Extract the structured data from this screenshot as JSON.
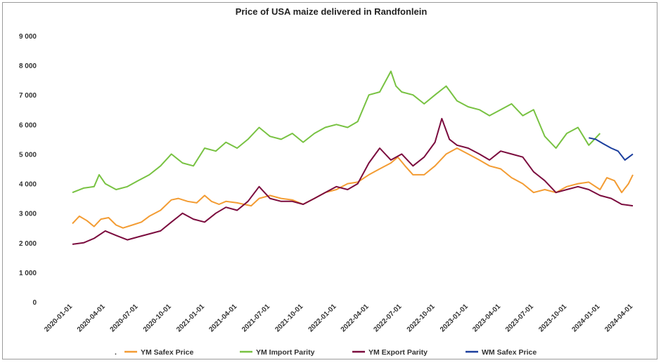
{
  "chart_data": {
    "type": "line",
    "title": "Price of USA maize delivered in Randfonlein",
    "xlabel": "",
    "ylabel": "",
    "ylim": [
      0,
      9000
    ],
    "yticks": [
      0,
      1000,
      2000,
      3000,
      4000,
      5000,
      6000,
      7000,
      8000,
      9000
    ],
    "ytick_labels": [
      "0",
      "1 000",
      "2 000",
      "3 000",
      "4 000",
      "5 000",
      "6 000",
      "7 000",
      "8 000",
      "9 000"
    ],
    "xlim": [
      "2020-01-01",
      "2024-04-01"
    ],
    "xtick_labels": [
      "2020-01-01",
      "2020-04-01",
      "2020-07-01",
      "2020-10-01",
      "2021-01-01",
      "2021-04-01",
      "2021-07-01",
      "2021-10-01",
      "2022-01-01",
      "2022-04-01",
      "2022-07-01",
      "2022-10-01",
      "2023-01-01",
      "2023-04-01",
      "2023-07-01",
      "2023-10-01",
      "2024-01-01",
      "2024-04-01"
    ],
    "grid": false,
    "legend": "bottom",
    "legend_marker": ".",
    "series": [
      {
        "name": "YM Safex Price",
        "color": "#f39c33",
        "x": [
          "2020-01-01",
          "2020-01-20",
          "2020-02-10",
          "2020-03-01",
          "2020-03-20",
          "2020-04-10",
          "2020-05-01",
          "2020-05-20",
          "2020-06-15",
          "2020-07-10",
          "2020-08-01",
          "2020-09-01",
          "2020-10-01",
          "2020-10-20",
          "2020-11-15",
          "2020-12-10",
          "2021-01-01",
          "2021-01-20",
          "2021-02-10",
          "2021-03-01",
          "2021-04-01",
          "2021-04-20",
          "2021-05-10",
          "2021-06-01",
          "2021-07-01",
          "2021-08-01",
          "2021-09-01",
          "2021-10-01",
          "2021-11-01",
          "2021-12-01",
          "2022-01-01",
          "2022-02-01",
          "2022-03-01",
          "2022-04-01",
          "2022-05-01",
          "2022-06-01",
          "2022-06-20",
          "2022-07-10",
          "2022-08-01",
          "2022-09-01",
          "2022-10-01",
          "2022-11-01",
          "2022-12-01",
          "2023-01-01",
          "2023-02-01",
          "2023-03-01",
          "2023-04-01",
          "2023-05-01",
          "2023-06-01",
          "2023-07-01",
          "2023-08-01",
          "2023-09-01",
          "2023-10-01",
          "2023-11-01",
          "2023-12-01",
          "2024-01-01",
          "2024-01-20",
          "2024-02-10",
          "2024-03-01",
          "2024-03-20",
          "2024-04-01"
        ],
        "y": [
          2650,
          2900,
          2750,
          2550,
          2800,
          2850,
          2600,
          2500,
          2600,
          2700,
          2900,
          3100,
          3450,
          3500,
          3400,
          3350,
          3600,
          3400,
          3300,
          3400,
          3350,
          3300,
          3250,
          3500,
          3600,
          3500,
          3450,
          3300,
          3500,
          3700,
          3800,
          4000,
          4050,
          4300,
          4500,
          4700,
          4900,
          4600,
          4300,
          4300,
          4600,
          5000,
          5200,
          5000,
          4800,
          4600,
          4500,
          4200,
          4000,
          3700,
          3800,
          3700,
          3900,
          4000,
          4050,
          3800,
          4200,
          4100,
          3700,
          4000,
          4300
        ]
      },
      {
        "name": "YM Import Parity",
        "color": "#78c242",
        "x": [
          "2020-01-01",
          "2020-02-01",
          "2020-03-01",
          "2020-03-15",
          "2020-04-01",
          "2020-05-01",
          "2020-06-01",
          "2020-07-01",
          "2020-08-01",
          "2020-09-01",
          "2020-10-01",
          "2020-11-01",
          "2020-12-01",
          "2021-01-01",
          "2021-02-01",
          "2021-03-01",
          "2021-04-01",
          "2021-05-01",
          "2021-06-01",
          "2021-07-01",
          "2021-08-01",
          "2021-09-01",
          "2021-10-01",
          "2021-11-01",
          "2021-12-01",
          "2022-01-01",
          "2022-02-01",
          "2022-03-01",
          "2022-04-01",
          "2022-05-01",
          "2022-06-01",
          "2022-06-15",
          "2022-07-01",
          "2022-08-01",
          "2022-09-01",
          "2022-10-01",
          "2022-11-01",
          "2022-12-01",
          "2023-01-01",
          "2023-02-01",
          "2023-03-01",
          "2023-04-01",
          "2023-05-01",
          "2023-06-01",
          "2023-07-01",
          "2023-08-01",
          "2023-09-01",
          "2023-10-01",
          "2023-11-01",
          "2023-12-01",
          "2024-01-01"
        ],
        "y": [
          3700,
          3850,
          3900,
          4300,
          4000,
          3800,
          3900,
          4100,
          4300,
          4600,
          5000,
          4700,
          4600,
          5200,
          5100,
          5400,
          5200,
          5500,
          5900,
          5600,
          5500,
          5700,
          5400,
          5700,
          5900,
          6000,
          5900,
          6100,
          7000,
          7100,
          7800,
          7300,
          7100,
          7000,
          6700,
          7000,
          7300,
          6800,
          6600,
          6500,
          6300,
          6500,
          6700,
          6300,
          6500,
          5600,
          5200,
          5700,
          5900,
          5300,
          5700
        ]
      },
      {
        "name": "YM Export Parity",
        "color": "#7b0c3e",
        "x": [
          "2020-01-01",
          "2020-02-01",
          "2020-03-01",
          "2020-04-01",
          "2020-05-01",
          "2020-06-01",
          "2020-07-01",
          "2020-08-01",
          "2020-09-01",
          "2020-10-01",
          "2020-11-01",
          "2020-12-01",
          "2021-01-01",
          "2021-02-01",
          "2021-03-01",
          "2021-04-01",
          "2021-05-01",
          "2021-06-01",
          "2021-07-01",
          "2021-08-01",
          "2021-09-01",
          "2021-10-01",
          "2021-11-01",
          "2021-12-01",
          "2022-01-01",
          "2022-02-01",
          "2022-03-01",
          "2022-04-01",
          "2022-05-01",
          "2022-06-01",
          "2022-07-01",
          "2022-08-01",
          "2022-09-01",
          "2022-10-01",
          "2022-10-20",
          "2022-11-10",
          "2022-12-01",
          "2023-01-01",
          "2023-02-01",
          "2023-03-01",
          "2023-04-01",
          "2023-05-01",
          "2023-06-01",
          "2023-07-01",
          "2023-08-01",
          "2023-09-01",
          "2023-10-01",
          "2023-11-01",
          "2023-12-01",
          "2024-01-01",
          "2024-02-01",
          "2024-03-01",
          "2024-04-01"
        ],
        "y": [
          1950,
          2000,
          2150,
          2400,
          2250,
          2100,
          2200,
          2300,
          2400,
          2700,
          3000,
          2800,
          2700,
          3000,
          3200,
          3100,
          3400,
          3900,
          3500,
          3400,
          3400,
          3300,
          3500,
          3700,
          3900,
          3800,
          4000,
          4700,
          5200,
          4800,
          5000,
          4600,
          4900,
          5400,
          6200,
          5500,
          5300,
          5200,
          5000,
          4800,
          5100,
          5000,
          4900,
          4400,
          4100,
          3700,
          3800,
          3900,
          3800,
          3600,
          3500,
          3300,
          3250
        ]
      },
      {
        "name": "WM Safex Price",
        "color": "#1c3f9e",
        "x": [
          "2023-12-01",
          "2023-12-20",
          "2024-01-10",
          "2024-02-01",
          "2024-02-20",
          "2024-03-10",
          "2024-04-01"
        ],
        "y": [
          5550,
          5500,
          5350,
          5200,
          5100,
          4800,
          5000
        ]
      }
    ]
  }
}
